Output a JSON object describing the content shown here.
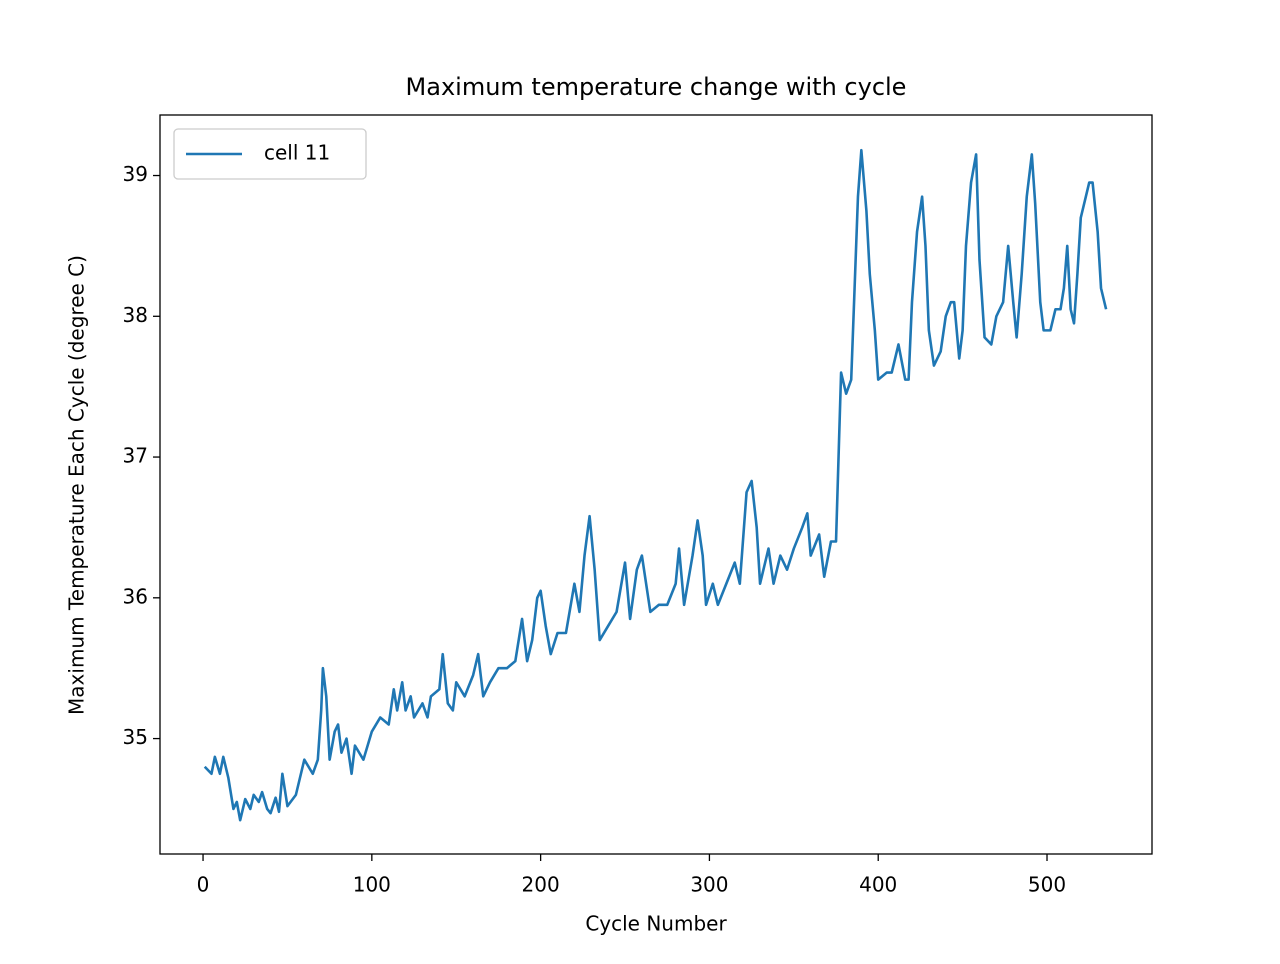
{
  "chart_data": {
    "type": "line",
    "title": "Maximum temperature change with cycle",
    "x_label": "Cycle Number",
    "y_label": "Maximum Temperature Each Cycle (degree C)",
    "xlim": [
      -25.5,
      562.2
    ],
    "xticks": [
      0,
      100,
      200,
      300,
      400,
      500
    ],
    "ylim": [
      34.18,
      39.43
    ],
    "yticks": [
      35,
      36,
      37,
      38,
      39
    ],
    "legend_position": "upper left",
    "x": [
      1,
      5,
      7,
      10,
      12,
      15,
      18,
      20,
      22,
      25,
      28,
      30,
      33,
      35,
      38,
      40,
      43,
      45,
      47,
      50,
      55,
      60,
      65,
      68,
      70,
      71,
      73,
      75,
      78,
      80,
      82,
      85,
      88,
      90,
      95,
      100,
      105,
      110,
      113,
      115,
      118,
      120,
      123,
      125,
      130,
      133,
      135,
      140,
      142,
      145,
      148,
      150,
      155,
      160,
      163,
      166,
      170,
      175,
      180,
      185,
      189,
      192,
      195,
      198,
      200,
      203,
      206,
      210,
      215,
      220,
      223,
      226,
      229,
      232,
      235,
      240,
      245,
      250,
      253,
      257,
      260,
      265,
      270,
      275,
      280,
      282,
      285,
      290,
      293,
      296,
      298,
      302,
      305,
      310,
      315,
      318,
      322,
      325,
      328,
      330,
      335,
      338,
      342,
      346,
      350,
      355,
      358,
      360,
      365,
      368,
      372,
      375,
      378,
      381,
      384,
      386,
      388,
      390,
      393,
      395,
      398,
      400,
      405,
      408,
      412,
      416,
      418,
      420,
      423,
      426,
      428,
      430,
      433,
      437,
      440,
      443,
      445,
      448,
      450,
      452,
      455,
      458,
      460,
      463,
      467,
      470,
      474,
      477,
      480,
      482,
      485,
      488,
      491,
      493,
      496,
      498,
      502,
      505,
      508,
      510,
      512,
      514,
      516,
      518,
      520,
      523,
      525,
      527,
      530,
      532,
      535
    ],
    "series": [
      {
        "name": "cell 11",
        "color": "#1f77b4",
        "values": [
          34.8,
          34.75,
          34.87,
          34.75,
          34.87,
          34.72,
          34.5,
          34.55,
          34.42,
          34.57,
          34.5,
          34.6,
          34.55,
          34.62,
          34.5,
          34.47,
          34.58,
          34.48,
          34.75,
          34.52,
          34.6,
          34.85,
          34.75,
          34.85,
          35.2,
          35.5,
          35.3,
          34.85,
          35.05,
          35.1,
          34.9,
          35.0,
          34.75,
          34.95,
          34.85,
          35.05,
          35.15,
          35.1,
          35.35,
          35.2,
          35.4,
          35.2,
          35.3,
          35.15,
          35.25,
          35.15,
          35.3,
          35.35,
          35.6,
          35.25,
          35.2,
          35.4,
          35.3,
          35.45,
          35.6,
          35.3,
          35.4,
          35.5,
          35.5,
          35.55,
          35.85,
          35.55,
          35.7,
          36.0,
          36.05,
          35.8,
          35.6,
          35.75,
          35.75,
          36.1,
          35.9,
          36.3,
          36.58,
          36.2,
          35.7,
          35.8,
          35.9,
          36.25,
          35.85,
          36.2,
          36.3,
          35.9,
          35.95,
          35.95,
          36.1,
          36.35,
          35.95,
          36.3,
          36.55,
          36.3,
          35.95,
          36.1,
          35.95,
          36.1,
          36.25,
          36.1,
          36.75,
          36.83,
          36.5,
          36.1,
          36.35,
          36.1,
          36.3,
          36.2,
          36.35,
          36.5,
          36.6,
          36.3,
          36.45,
          36.15,
          36.4,
          36.4,
          37.6,
          37.45,
          37.55,
          38.2,
          38.85,
          39.18,
          38.75,
          38.3,
          37.9,
          37.55,
          37.6,
          37.6,
          37.8,
          37.55,
          37.55,
          38.1,
          38.6,
          38.85,
          38.5,
          37.9,
          37.65,
          37.75,
          38.0,
          38.1,
          38.1,
          37.7,
          37.9,
          38.5,
          38.95,
          39.15,
          38.4,
          37.85,
          37.8,
          38.0,
          38.1,
          38.5,
          38.1,
          37.85,
          38.3,
          38.85,
          39.15,
          38.8,
          38.1,
          37.9,
          37.9,
          38.05,
          38.05,
          38.2,
          38.5,
          38.05,
          37.95,
          38.3,
          38.7,
          38.85,
          38.95,
          38.95,
          38.6,
          38.2,
          38.05
        ]
      }
    ]
  }
}
